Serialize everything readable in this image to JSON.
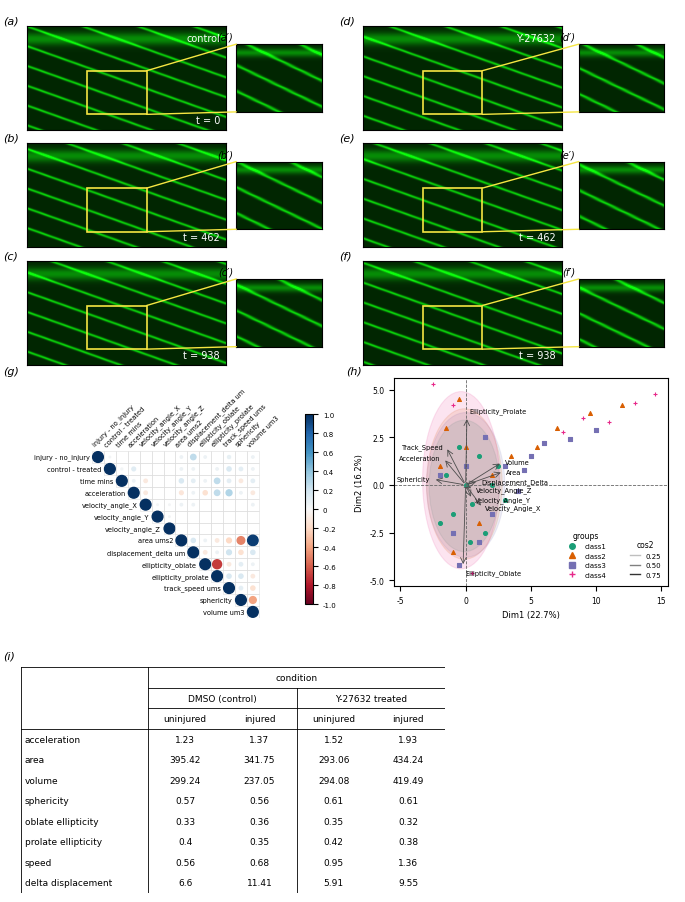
{
  "image_panels": {
    "columns": [
      {
        "condition": "control",
        "rows": [
          {
            "label": "(a)",
            "zoom_label": "(a′)",
            "time": "t = 0"
          },
          {
            "label": "(b)",
            "zoom_label": "(b′)",
            "time": "t = 462"
          },
          {
            "label": "(c)",
            "zoom_label": "(c′)",
            "time": "t = 938"
          }
        ]
      },
      {
        "condition": "Y-27632",
        "rows": [
          {
            "label": "(d)",
            "zoom_label": "(d′)",
            "time": null
          },
          {
            "label": "(e)",
            "zoom_label": "(e′)",
            "time": "t = 462"
          },
          {
            "label": "(f)",
            "zoom_label": "(f′)",
            "time": "t = 938"
          }
        ]
      }
    ]
  },
  "chart_data": [
    {
      "type": "correlation",
      "title": "(g)",
      "variables": [
        "injury - no_injury",
        "control - treated",
        "time mins",
        "acceleration",
        "velocity_angle_X",
        "velocity_angle_Y",
        "velocity_angle_Z",
        "area ums2",
        "displacement_delta um",
        "ellipticity_oblate",
        "ellipticity_prolate",
        "track_speed ums",
        "sphericity",
        "volume um3"
      ],
      "matrix": [
        [
          1,
          0.02,
          0,
          0,
          0,
          0,
          0,
          0.05,
          0.25,
          0.05,
          0,
          0.08,
          0,
          0.05
        ],
        [
          null,
          1,
          0.03,
          0.12,
          0,
          0,
          0,
          0.05,
          0.05,
          0,
          0.05,
          0.15,
          0.1,
          0.05
        ],
        [
          null,
          null,
          1,
          0.05,
          -0.1,
          0,
          0,
          0.15,
          0.1,
          0.05,
          0.25,
          0.1,
          -0.1,
          0.1
        ],
        [
          null,
          null,
          null,
          1,
          -0.1,
          0,
          0,
          -0.12,
          0.05,
          -0.15,
          0.25,
          0.3,
          0.05,
          -0.1
        ],
        [
          null,
          null,
          null,
          null,
          1,
          0.02,
          0.02,
          0.05,
          0.05,
          0,
          0,
          0,
          0,
          0.05
        ],
        [
          null,
          null,
          null,
          null,
          null,
          1,
          0.02,
          0,
          0,
          0,
          0,
          0,
          0,
          0
        ],
        [
          null,
          null,
          null,
          null,
          null,
          null,
          1,
          0,
          0,
          0,
          0,
          0,
          0,
          0
        ],
        [
          null,
          null,
          null,
          null,
          null,
          null,
          null,
          1,
          0.15,
          0.05,
          -0.1,
          -0.2,
          -0.5,
          0.95
        ],
        [
          null,
          null,
          null,
          null,
          null,
          null,
          null,
          null,
          1,
          -0.1,
          0.05,
          0.2,
          -0.15,
          0.15
        ],
        [
          null,
          null,
          null,
          null,
          null,
          null,
          null,
          null,
          null,
          1,
          -0.7,
          -0.1,
          0.1,
          0.05
        ],
        [
          null,
          null,
          null,
          null,
          null,
          null,
          null,
          null,
          null,
          null,
          1,
          0.15,
          0.15,
          -0.1
        ],
        [
          null,
          null,
          null,
          null,
          null,
          null,
          null,
          null,
          null,
          null,
          null,
          1,
          0.1,
          -0.15
        ],
        [
          null,
          null,
          null,
          null,
          null,
          null,
          null,
          null,
          null,
          null,
          null,
          null,
          1,
          -0.4
        ],
        [
          null,
          null,
          null,
          null,
          null,
          null,
          null,
          null,
          null,
          null,
          null,
          null,
          null,
          1
        ]
      ],
      "colorbar_range": [
        -1,
        1
      ],
      "colorbar_ticks": [
        {
          "value": -1,
          "label": "-1.0"
        },
        {
          "value": -0.8,
          "label": "-0.8"
        },
        {
          "value": -0.6,
          "label": "-0.6"
        },
        {
          "value": -0.4,
          "label": "-0.4"
        },
        {
          "value": -0.2,
          "label": "-0.2"
        },
        0,
        {
          "value": 0.2,
          "label": "0.2"
        },
        {
          "value": 0.4,
          "label": "0.4"
        },
        {
          "value": 0.6,
          "label": "0.6"
        },
        {
          "value": 0.8,
          "label": "0.8"
        },
        {
          "value": 1,
          "label": "1.0"
        }
      ]
    },
    {
      "type": "scatter",
      "title": "(h)",
      "x_label": "Dim1 (22.7%)",
      "y_label": "Dim2 (16.2%)",
      "xlim": [
        -5.5,
        15.5
      ],
      "xticks": [
        -5,
        0,
        5,
        10,
        15
      ],
      "ylim": [
        -5.3,
        5.6
      ],
      "yticks": [
        {
          "value": -5,
          "label": "-5.0"
        },
        {
          "value": -2.5,
          "label": "-2.5"
        },
        {
          "value": 0,
          "label": "0.0"
        },
        {
          "value": 2.5,
          "label": "2.5"
        },
        {
          "value": 5,
          "label": "5.0"
        }
      ],
      "legend": "lower right",
      "legend_title": "groups",
      "series": [
        {
          "name": "class1",
          "color": "#1b9e77",
          "marker": "circle",
          "points": [
            [
              0,
              0
            ],
            [
              0.5,
              -1
            ],
            [
              -1,
              -1.5
            ],
            [
              1,
              1.5
            ],
            [
              -0.5,
              2
            ],
            [
              1.5,
              -2.5
            ],
            [
              2,
              0
            ],
            [
              -1.5,
              0.5
            ],
            [
              0.3,
              -3
            ],
            [
              2.5,
              1
            ],
            [
              -2,
              -2
            ],
            [
              3,
              -0.8
            ]
          ],
          "ellipse": {
            "center": [
              -0.1,
              -0.05
            ],
            "width": 5.4,
            "height": 6.9
          }
        },
        {
          "name": "class2",
          "color": "#d95f02",
          "marker": "triangle",
          "points": [
            [
              12,
              4.2
            ],
            [
              9.5,
              3.8
            ],
            [
              7,
              3
            ],
            [
              5.5,
              2
            ],
            [
              -0.5,
              4.5
            ],
            [
              -1.5,
              3
            ],
            [
              -2,
              1
            ],
            [
              0,
              2
            ],
            [
              1,
              -2
            ],
            [
              -1,
              -3.5
            ],
            [
              2,
              0.5
            ],
            [
              3.5,
              1.5
            ]
          ],
          "ellipse": {
            "center": [
              -0.1,
              0.05
            ],
            "width": 5.8,
            "height": 7.9
          }
        },
        {
          "name": "class3",
          "color": "#7570b3",
          "marker": "square",
          "points": [
            [
              10,
              2.9
            ],
            [
              8,
              2.4
            ],
            [
              6,
              2.2
            ],
            [
              5,
              1.5
            ],
            [
              4.5,
              0.8
            ],
            [
              3,
              1
            ],
            [
              2,
              -1.5
            ],
            [
              1,
              -3
            ],
            [
              -1,
              -2.5
            ],
            [
              -2,
              0.5
            ],
            [
              0,
              1
            ],
            [
              1.5,
              2.5
            ],
            [
              -0.5,
              -4.2
            ],
            [
              4,
              -0.3
            ]
          ],
          "ellipse": {
            "center": [
              0,
              0
            ],
            "width": 6.0,
            "height": 7.6
          }
        },
        {
          "name": "class4",
          "color": "#e7298a",
          "marker": "plus",
          "points": [
            [
              14.5,
              4.8
            ],
            [
              13,
              4.3
            ],
            [
              9,
              3.5
            ],
            [
              7.5,
              2.8
            ],
            [
              11,
              3.3
            ],
            [
              -2.5,
              5.3
            ],
            [
              -1,
              4.2
            ],
            [
              0.5,
              -4.6
            ]
          ],
          "ellipse": {
            "center": [
              -0.35,
              0.25
            ],
            "width": 5.9,
            "height": 9.3
          }
        }
      ],
      "variables": [
        {
          "name": "Ellipticity_Prolate",
          "x": 0.1,
          "y": 3.6
        },
        {
          "name": "Track_Speed",
          "x": -1.5,
          "y": 2.0
        },
        {
          "name": "Acceleration",
          "x": -1.7,
          "y": 1.4
        },
        {
          "name": "Sphericity",
          "x": -2.5,
          "y": 0.3
        },
        {
          "name": "Volume",
          "x": 2.8,
          "y": 1.2
        },
        {
          "name": "Area",
          "x": 2.9,
          "y": 0.7
        },
        {
          "name": "Displacement_Delta",
          "x": 1.0,
          "y": 0.2
        },
        {
          "name": "Velocity_Angle_Z",
          "x": 0.6,
          "y": -0.25
        },
        {
          "name": "Velocity_Angle_Y",
          "x": 0.5,
          "y": -0.75
        },
        {
          "name": "Velocity_Angle_X",
          "x": 1.3,
          "y": -1.2
        },
        {
          "name": "Ellipticity_Oblate",
          "x": -0.2,
          "y": -4.3
        }
      ],
      "cos2_legend": {
        "title": "cos2",
        "labels": [
          "0.25",
          "0.50",
          "0.75"
        ]
      }
    }
  ],
  "table": {
    "title": "(i)",
    "header": "condition",
    "groups": [
      "DMSO (control)",
      "Y-27632 treated"
    ],
    "subheaders": [
      "uninjured",
      "injured",
      "uninjured",
      "injured"
    ],
    "rows": [
      {
        "label": "acceleration",
        "values": [
          1.23,
          1.37,
          1.52,
          1.93
        ]
      },
      {
        "label": "area",
        "values": [
          395.42,
          341.75,
          293.06,
          434.24
        ]
      },
      {
        "label": "volume",
        "values": [
          299.24,
          237.05,
          294.08,
          419.49
        ]
      },
      {
        "label": "sphericity",
        "values": [
          0.57,
          0.56,
          0.61,
          0.61
        ]
      },
      {
        "label": "oblate ellipticity",
        "values": [
          0.33,
          0.36,
          0.35,
          0.32
        ]
      },
      {
        "label": "prolate ellipticity",
        "values": [
          0.4,
          0.35,
          0.42,
          0.38
        ]
      },
      {
        "label": "speed",
        "values": [
          0.56,
          0.68,
          0.95,
          1.36
        ]
      },
      {
        "label": "delta displacement",
        "values": [
          6.6,
          11.41,
          5.91,
          9.55
        ]
      }
    ]
  }
}
